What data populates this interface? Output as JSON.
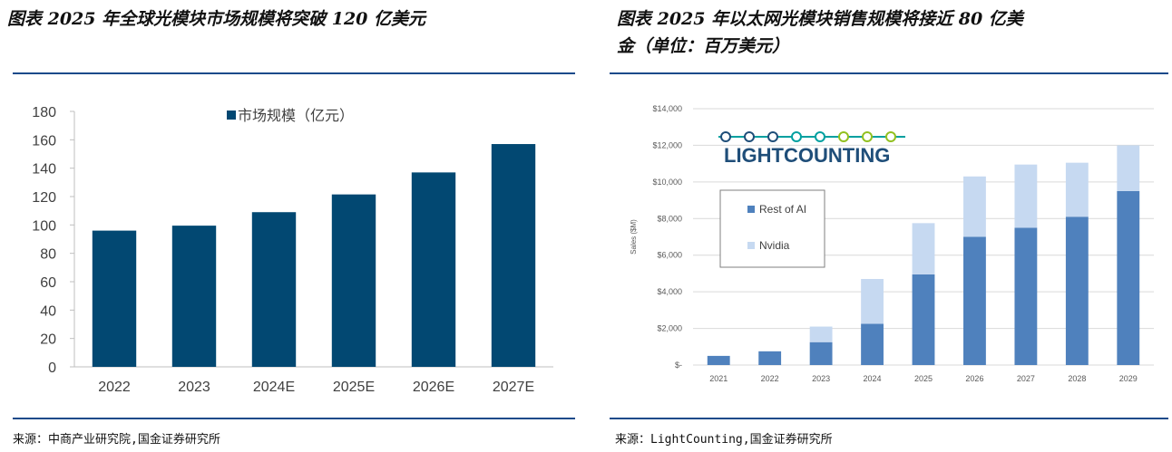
{
  "left": {
    "title": "图表 2025 年全球光模块市场规模将突破 120 亿美元",
    "source": "来源：中商产业研究院,国金证券研究所"
  },
  "right": {
    "title_line1": "图表 2025 年以太网光模块销售规模将接近 80 亿美",
    "title_line2": "金（单位：百万美元）",
    "logo_text": "LIGHTCOUNTING",
    "source": "来源：LightCounting,国金证券研究所"
  },
  "colors": {
    "left_bar": "#024872",
    "rest_of_ai": "#4f81bd",
    "nvidia": "#c6d9f1",
    "rule": "#1a4a8a",
    "logo_blue": "#1f4e79",
    "logo_teal": "#00a0a0",
    "logo_green": "#92c020"
  },
  "chart_data": [
    {
      "type": "bar",
      "categories": [
        "2022",
        "2023",
        "2024E",
        "2025E",
        "2026E",
        "2027E"
      ],
      "series": [
        {
          "name": "市场规模（亿元）",
          "values": [
            96,
            99.5,
            109,
            121.5,
            137,
            157
          ]
        }
      ],
      "ylim": [
        0,
        180
      ],
      "yticks": [
        0,
        20,
        40,
        60,
        80,
        100,
        120,
        140,
        160,
        180
      ],
      "ytick_labels": [
        "0",
        "20",
        "40",
        "60",
        "80",
        "100",
        "120",
        "140",
        "160",
        "180"
      ],
      "legend": "top",
      "grid": false
    },
    {
      "type": "bar",
      "stacked": true,
      "categories": [
        "2021",
        "2022",
        "2023",
        "2024",
        "2025",
        "2026",
        "2027",
        "2028",
        "2029"
      ],
      "series": [
        {
          "name": "Rest of AI",
          "values": [
            500,
            750,
            1250,
            2250,
            4950,
            7000,
            7500,
            8100,
            9500
          ]
        },
        {
          "name": "Nvidia",
          "values": [
            0,
            0,
            850,
            2450,
            2800,
            3300,
            3450,
            2950,
            2500
          ]
        }
      ],
      "ylabel": "Sales ($M)",
      "ylim": [
        0,
        14000
      ],
      "yticks": [
        0,
        2000,
        4000,
        6000,
        8000,
        10000,
        12000,
        14000
      ],
      "ytick_labels": [
        "$-",
        "$2,000",
        "$4,000",
        "$6,000",
        "$8,000",
        "$10,000",
        "$12,000",
        "$14,000"
      ],
      "legend": "upper-left",
      "grid": true
    }
  ]
}
